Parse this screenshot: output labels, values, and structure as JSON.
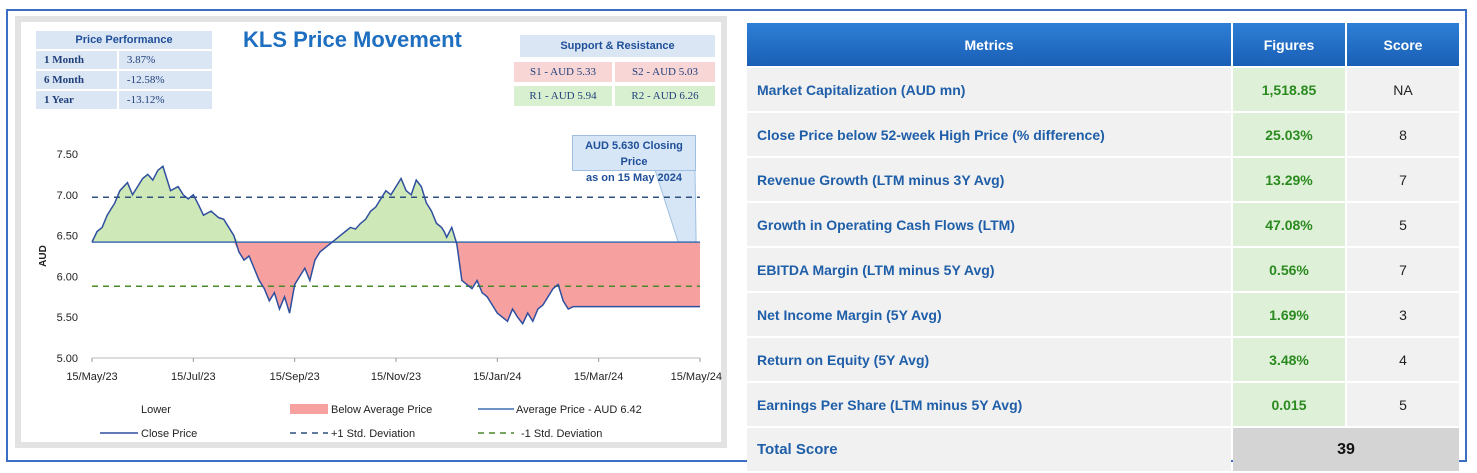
{
  "chart_title": "KLS Price Movement",
  "price_performance": {
    "header": "Price Performance",
    "rows": [
      {
        "label": "1 Month",
        "value": "3.87%"
      },
      {
        "label": "6 Month",
        "value": "-12.58%"
      },
      {
        "label": "1 Year",
        "value": "-13.12%"
      }
    ]
  },
  "support_resistance": {
    "header": "Support & Resistance",
    "s1": "S1 - AUD 5.33",
    "s2": "S2 - AUD 5.03",
    "r1": "R1 - AUD 5.94",
    "r2": "R2 - AUD 6.26"
  },
  "callout": {
    "line1": "AUD 5.630 Closing Price",
    "line2": "as on 15 May 2024"
  },
  "legend": {
    "lower": "Lower",
    "below_avg": "Below Average Price",
    "avg_price": "Average Price - AUD 6.42",
    "close_price": "Close Price",
    "plus_std": "+1 Std. Deviation",
    "minus_std": "-1 Std. Deviation"
  },
  "colors": {
    "above_fill": "#cfe8b8",
    "below_fill": "#f7a0a0",
    "close_line": "#2f4f9f",
    "avg_line": "#3f6fb0",
    "plus_std": "#2f4f7f",
    "minus_std": "#4a8a2a"
  },
  "chart_data": {
    "type": "line",
    "ylabel": "AUD",
    "ylim": [
      5.0,
      7.5
    ],
    "yticks": [
      "7.50",
      "7.00",
      "6.50",
      "6.00",
      "5.50",
      "5.00"
    ],
    "xticks": [
      "15/May/23",
      "15/Jul/23",
      "15/Sep/23",
      "15/Nov/23",
      "15/Jan/24",
      "15/Mar/24",
      "15/May/24"
    ],
    "average_price": 6.42,
    "plus_std": 6.97,
    "minus_std": 5.88,
    "series": [
      {
        "name": "Close Price",
        "x": [
          0,
          0.1,
          0.2,
          0.3,
          0.45,
          0.55,
          0.7,
          0.8,
          0.9,
          1.0,
          1.1,
          1.2,
          1.3,
          1.4,
          1.55,
          1.7,
          1.8,
          1.9,
          2.0,
          2.1,
          2.2,
          2.35,
          2.5,
          2.6,
          2.7,
          2.8,
          2.9,
          3.0,
          3.1,
          3.2,
          3.3,
          3.4,
          3.5,
          3.6,
          3.7,
          3.8,
          3.9,
          4.0,
          4.1,
          4.2,
          4.3,
          4.4,
          4.5,
          4.6,
          4.7,
          4.8,
          4.9,
          5.0,
          5.1,
          5.2,
          5.3,
          5.4,
          5.5,
          5.6,
          5.7,
          5.8,
          5.9,
          6.0,
          6.1,
          6.2,
          6.3,
          6.4,
          6.5,
          6.6,
          6.7,
          6.8,
          6.9,
          6.95,
          7.0,
          7.1,
          7.2,
          7.3,
          7.4,
          7.5,
          7.6,
          7.7,
          7.8,
          7.9,
          8.0,
          8.1,
          8.2,
          8.3,
          8.4,
          8.5,
          8.6,
          8.7,
          8.8,
          8.9,
          9.0,
          9.1,
          9.2,
          9.3,
          9.4,
          9.5,
          9.6,
          9.7,
          9.8,
          9.9,
          10.0,
          10.1,
          10.2,
          10.3,
          10.4,
          10.5,
          10.6,
          10.7,
          10.8,
          10.9,
          11.0,
          11.1,
          11.2,
          11.3,
          11.4,
          11.5,
          11.6,
          11.7,
          11.8,
          11.9,
          12.0
        ],
        "values": [
          6.42,
          6.55,
          6.6,
          6.75,
          6.9,
          7.05,
          7.15,
          7.0,
          7.1,
          7.2,
          7.25,
          7.18,
          7.3,
          7.35,
          7.05,
          7.1,
          7.0,
          6.95,
          7.0,
          6.88,
          6.75,
          6.8,
          6.72,
          6.7,
          6.6,
          6.5,
          6.3,
          6.2,
          6.25,
          6.1,
          5.95,
          5.85,
          5.7,
          5.8,
          5.6,
          5.75,
          5.55,
          5.9,
          6.0,
          6.1,
          5.95,
          6.2,
          6.3,
          6.35,
          6.4,
          6.45,
          6.5,
          6.55,
          6.6,
          6.58,
          6.65,
          6.7,
          6.8,
          6.85,
          6.95,
          7.05,
          7.0,
          7.1,
          7.2,
          7.05,
          7.0,
          7.18,
          7.1,
          6.9,
          6.8,
          6.65,
          6.6,
          6.55,
          6.48,
          6.6,
          6.4,
          5.95,
          5.9,
          5.85,
          5.95,
          5.8,
          5.75,
          5.65,
          5.55,
          5.5,
          5.45,
          5.6,
          5.5,
          5.42,
          5.55,
          5.45,
          5.6,
          5.65,
          5.75,
          5.85,
          5.9,
          5.7,
          5.6,
          5.63,
          5.63,
          5.63,
          5.63,
          5.63,
          5.63,
          5.63,
          5.63,
          5.63,
          5.63,
          5.63,
          5.63,
          5.63,
          5.63,
          5.63,
          5.63,
          5.63,
          5.63,
          5.63,
          5.63,
          5.63,
          5.63,
          5.63,
          5.63,
          5.63,
          5.63
        ]
      }
    ]
  },
  "metrics_table": {
    "headers": [
      "Metrics",
      "Figures",
      "Score"
    ],
    "rows": [
      {
        "metric": "Market Capitalization (AUD mn)",
        "figure": "1,518.85",
        "score": "NA"
      },
      {
        "metric": "Close Price below 52-week High Price (% difference)",
        "figure": "25.03%",
        "score": "8"
      },
      {
        "metric": "Revenue Growth (LTM minus 3Y Avg)",
        "figure": "13.29%",
        "score": "7"
      },
      {
        "metric": "Growth in Operating Cash Flows (LTM)",
        "figure": "47.08%",
        "score": "5"
      },
      {
        "metric": "EBITDA Margin (LTM minus 5Y Avg)",
        "figure": "0.56%",
        "score": "7"
      },
      {
        "metric": "Net Income Margin (5Y Avg)",
        "figure": "1.69%",
        "score": "3"
      },
      {
        "metric": "Return on Equity (5Y Avg)",
        "figure": "3.48%",
        "score": "4"
      },
      {
        "metric": "Earnings Per Share (LTM minus 5Y Avg)",
        "figure": "0.015",
        "score": "5"
      }
    ],
    "total_label": "Total Score",
    "total_value": "39"
  }
}
